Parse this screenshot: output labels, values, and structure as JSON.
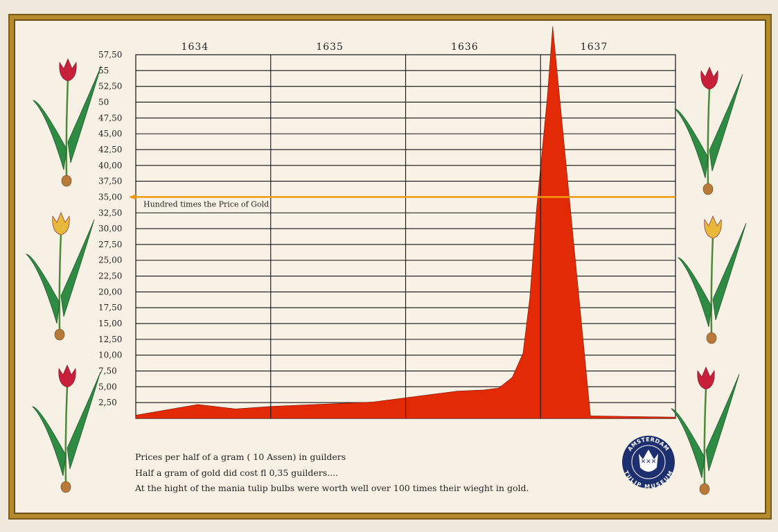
{
  "chart_data": {
    "type": "area",
    "title": "",
    "xlabel": "",
    "ylabel": "",
    "x_categories": [
      "1634",
      "1635",
      "1636",
      "1637"
    ],
    "xlim": [
      1634,
      1638
    ],
    "ylim": [
      0,
      57.5
    ],
    "y_ticks": [
      "2,50",
      "5,00",
      "7,50",
      "10,00",
      "12,50",
      "15,00",
      "17,50",
      "20,00",
      "22,50",
      "25,00",
      "27,50",
      "30,00",
      "32,50",
      "35,00",
      "37,50",
      "40,00",
      "42,50",
      "45,00",
      "47,50",
      "50",
      "52,50",
      "55",
      "57,50"
    ],
    "grid": true,
    "series": [
      {
        "color": "#e22b06",
        "points": [
          [
            1634.0,
            0.5
          ],
          [
            1634.46,
            2.2
          ],
          [
            1634.74,
            1.5
          ],
          [
            1635.0,
            1.9
          ],
          [
            1635.76,
            2.6
          ],
          [
            1636.38,
            4.3
          ],
          [
            1636.58,
            4.5
          ],
          [
            1636.69,
            4.8
          ],
          [
            1636.79,
            6.5
          ],
          [
            1636.87,
            10.3
          ],
          [
            1636.92,
            19
          ],
          [
            1636.97,
            33
          ],
          [
            1637.05,
            50.8
          ],
          [
            1637.09,
            62
          ],
          [
            1637.37,
            0.4
          ],
          [
            1638.0,
            0.2
          ]
        ]
      }
    ],
    "reference_line": {
      "value": 35,
      "label": "Hundred times the Price of Gold",
      "color": "#f29a12"
    }
  },
  "captions": [
    "Prices per half of a gram ( 10 Assen) in guilders",
    "Half a gram of gold did cost  fl 0,35 guilders....",
    "At the hight of the mania tulip bulbs were worth well over 100 times their wieght in gold."
  ],
  "logo": {
    "text_top": "AMSTERDAM",
    "text_bottom": "TULIP MUSEUM",
    "color": "#1d2f6e"
  }
}
